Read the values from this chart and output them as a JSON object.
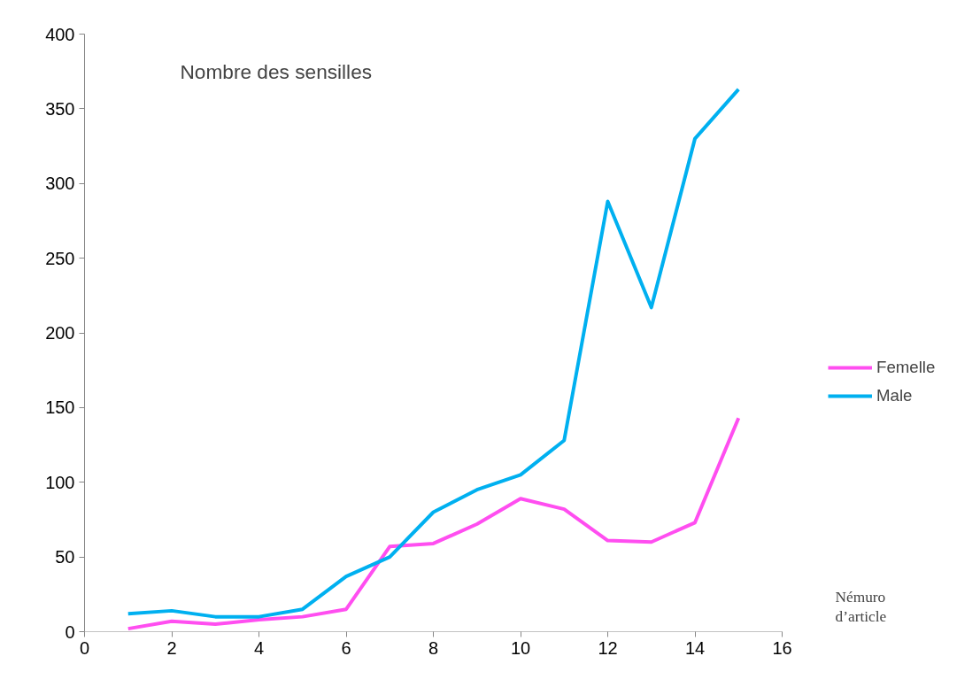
{
  "chart_data": {
    "type": "line",
    "title": "Nombre des sensilles",
    "xlabel": "Némuro d’article",
    "x": [
      1,
      2,
      3,
      4,
      5,
      6,
      7,
      8,
      9,
      10,
      11,
      12,
      13,
      14,
      15
    ],
    "series": [
      {
        "name": "Femelle",
        "color": "#ff4ef0",
        "values": [
          2,
          7,
          5,
          8,
          10,
          15,
          57,
          59,
          72,
          89,
          82,
          61,
          60,
          73,
          143
        ]
      },
      {
        "name": "Male",
        "color": "#00b0f0",
        "values": [
          12,
          14,
          10,
          10,
          15,
          37,
          50,
          80,
          95,
          105,
          128,
          288,
          217,
          330,
          363
        ]
      }
    ],
    "xlim": [
      0,
      16
    ],
    "xticks": [
      0,
      2,
      4,
      6,
      8,
      10,
      12,
      14,
      16
    ],
    "ylim": [
      0,
      400
    ],
    "yticks": [
      0,
      50,
      100,
      150,
      200,
      250,
      300,
      350,
      400
    ],
    "grid": false,
    "legend": "right",
    "marker": "none",
    "line_style": "solid"
  }
}
